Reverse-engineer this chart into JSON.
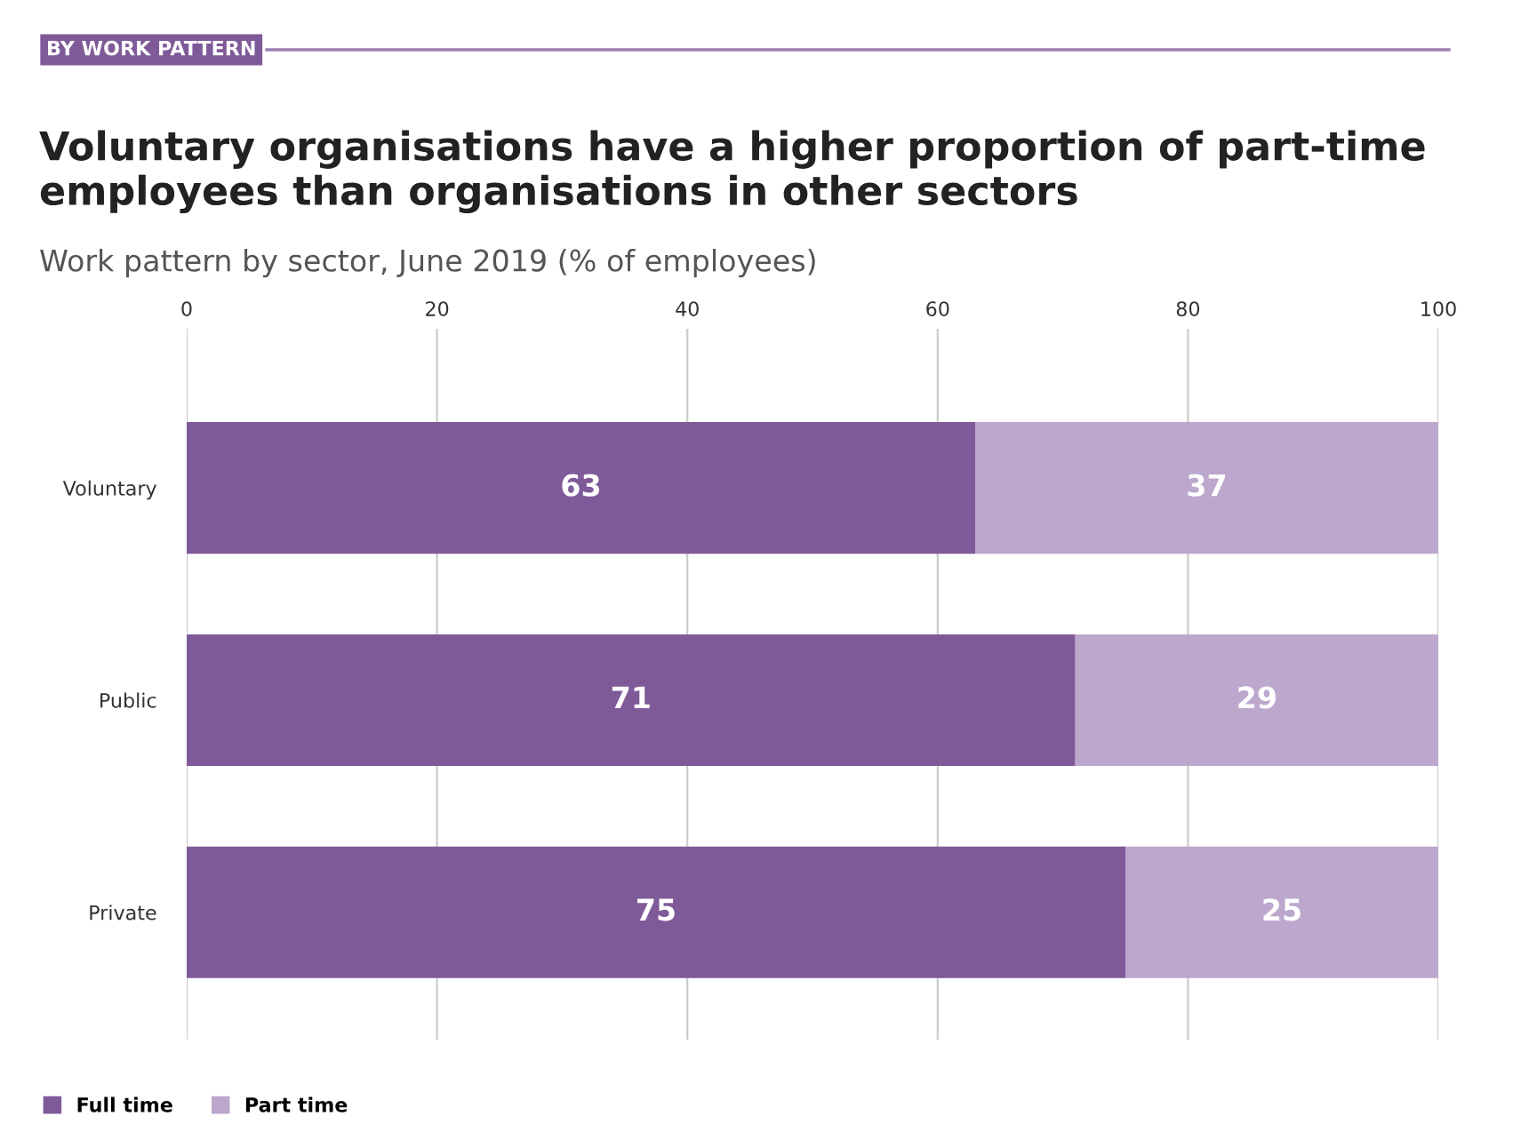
{
  "chart_data": {
    "type": "bar",
    "orientation": "horizontal",
    "stacked": true,
    "title": "Voluntary organisations have a higher proportion of part-time employees than organisations in other sectors",
    "subtitle": "Work pattern by sector, June 2019 (% of employees)",
    "annotations": [
      "BY WORK PATTERN"
    ],
    "categories": [
      "Voluntary",
      "Public",
      "Private"
    ],
    "series": [
      {
        "name": "Full time",
        "color": "#7f5a99",
        "values": [
          63,
          71,
          75
        ]
      },
      {
        "name": "Part time",
        "color": "#bca7cd",
        "values": [
          37,
          29,
          25
        ]
      }
    ],
    "xlim": [
      0,
      100
    ],
    "xticks": [
      0,
      20,
      40,
      60,
      80,
      100
    ],
    "grid": "x",
    "legend": "bottom left",
    "data_labels": true
  }
}
